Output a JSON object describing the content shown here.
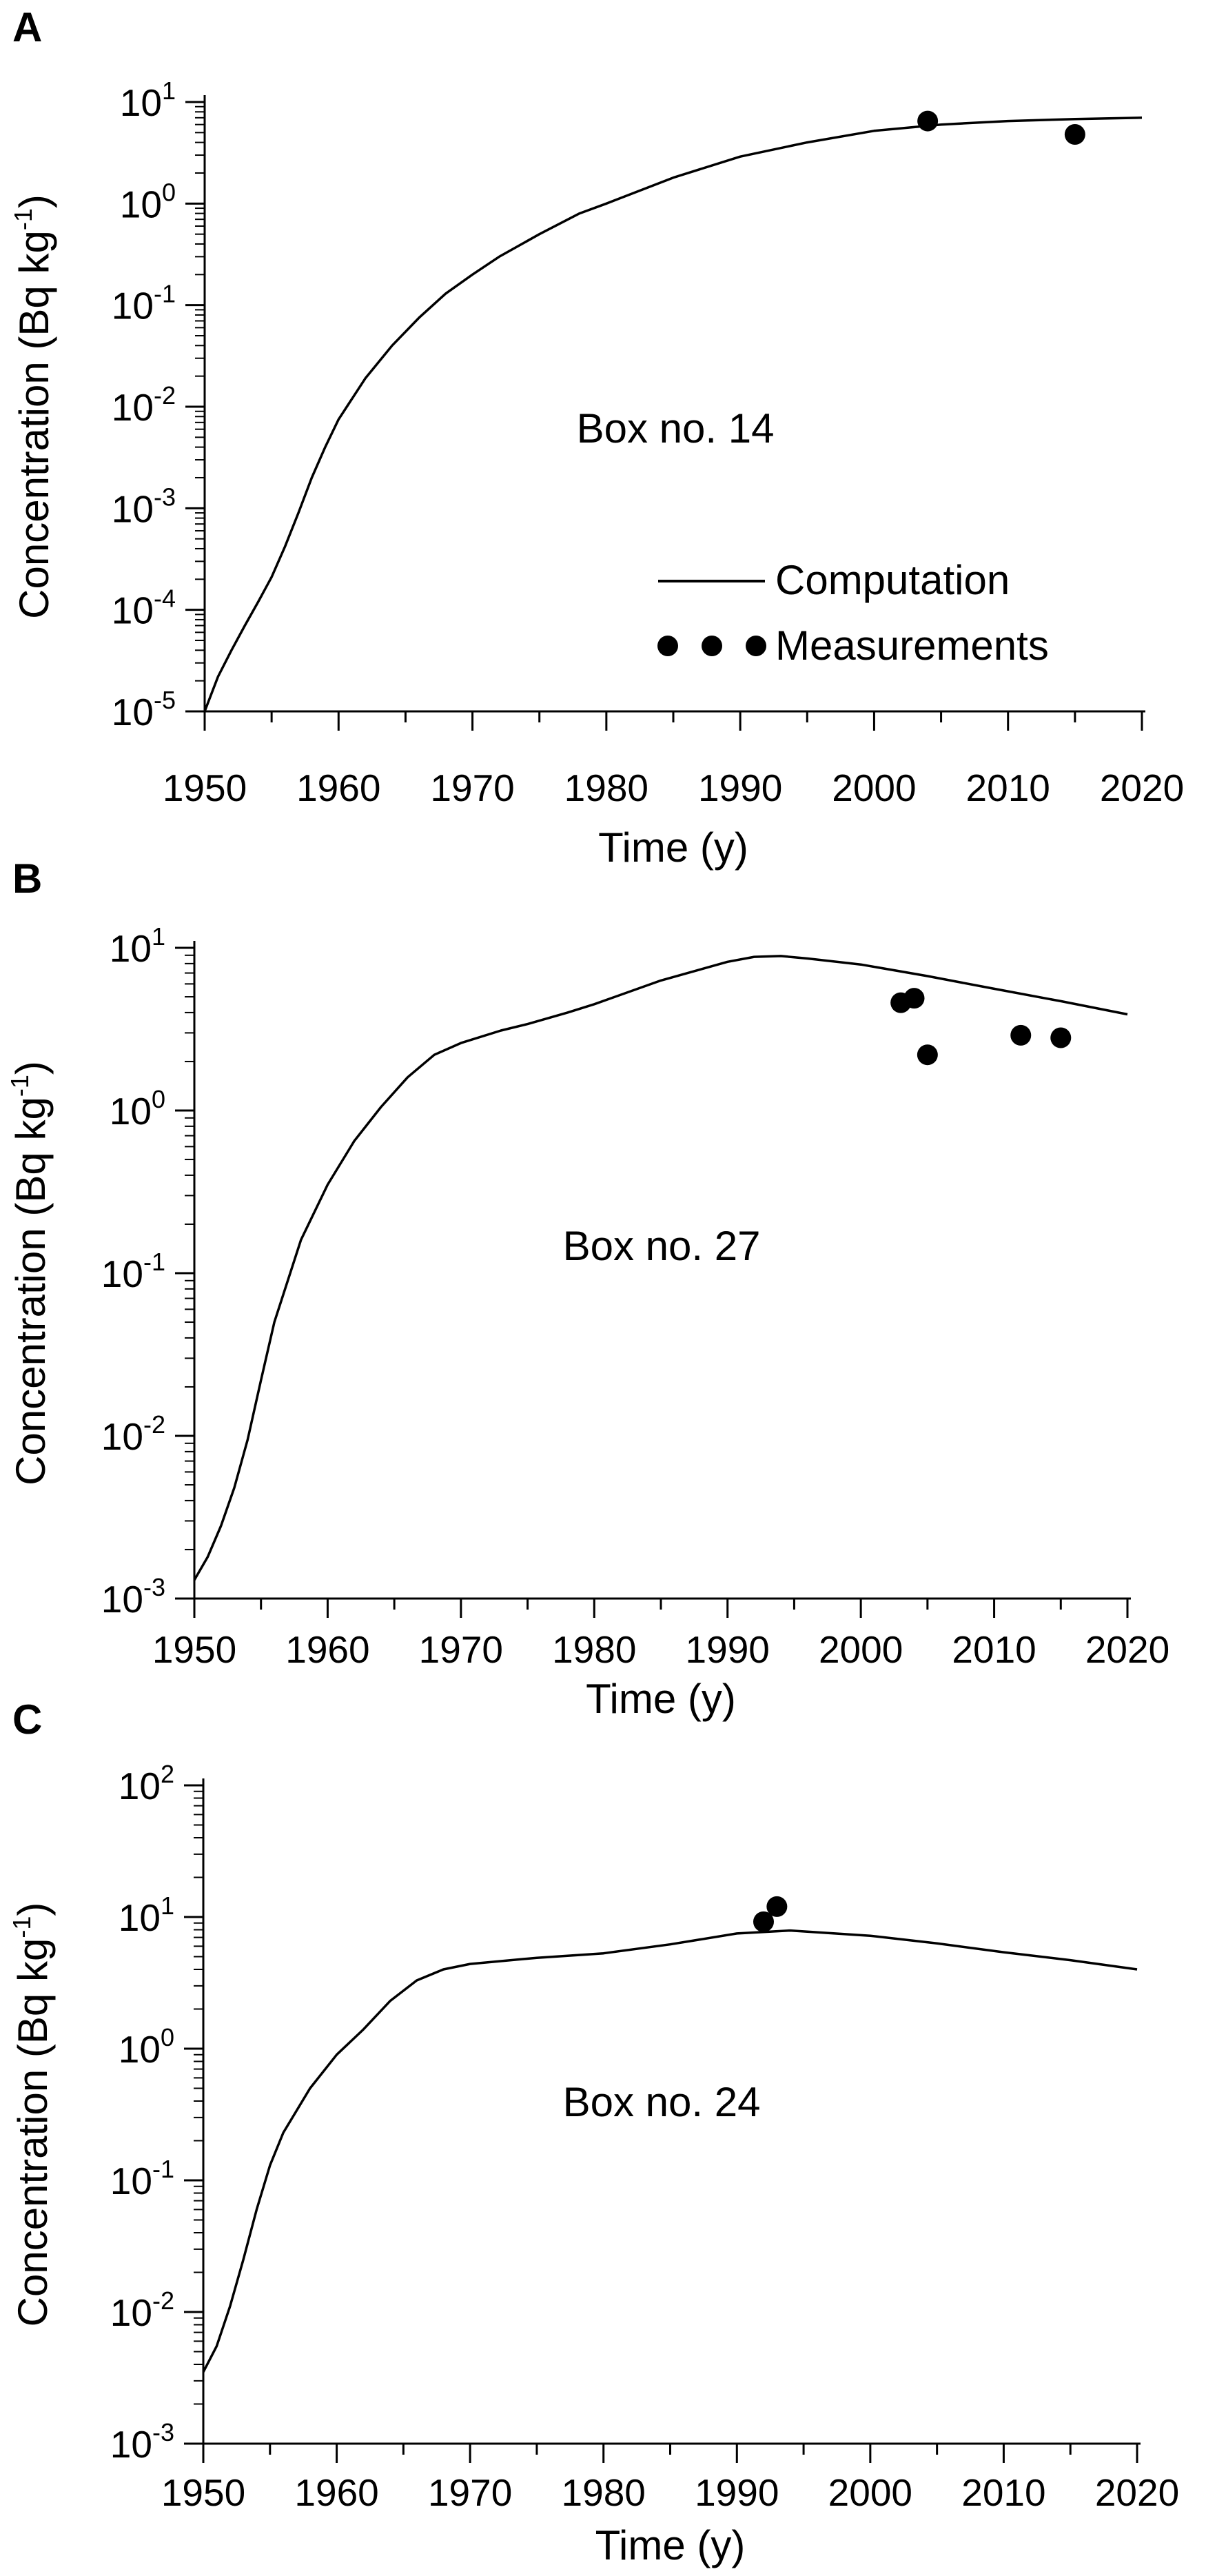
{
  "chart_data": [
    {
      "type": "line",
      "panel_label": "A",
      "xlabel": "Time  (y)",
      "ylabel": "Concentration  (Bq kg",
      "ylabel_exp": "-1",
      "ylabel_close": ")",
      "x_scale": "linear",
      "y_scale": "log",
      "xlim": [
        1950,
        2020
      ],
      "ylim": [
        1e-05,
        10
      ],
      "x_ticks": [
        1950,
        1960,
        1970,
        1980,
        1990,
        2000,
        2010,
        2020
      ],
      "x_tick_labels": [
        "1950",
        "1960",
        "1970",
        "1980",
        "1990",
        "2000",
        "2010",
        "2020"
      ],
      "y_ticks": [
        {
          "value": 1e-05,
          "base": "10",
          "exp": "-5"
        },
        {
          "value": 0.0001,
          "base": "10",
          "exp": "-4"
        },
        {
          "value": 0.001,
          "base": "10",
          "exp": "-3"
        },
        {
          "value": 0.01,
          "base": "10",
          "exp": "-2"
        },
        {
          "value": 0.1,
          "base": "10",
          "exp": "-1"
        },
        {
          "value": 1,
          "base": "10",
          "exp": "0"
        },
        {
          "value": 10,
          "base": "10",
          "exp": "1"
        }
      ],
      "annotation": "Box no. 14",
      "legend": {
        "placement": "lower-right",
        "line_label": "Computation",
        "points_label": "Measurements"
      },
      "series": [
        {
          "kind": "line",
          "x": [
            1950,
            1951,
            1952,
            1953,
            1954,
            1955,
            1956,
            1957,
            1958,
            1959,
            1960,
            1962,
            1964,
            1966,
            1968,
            1970,
            1972,
            1975,
            1978,
            1980,
            1985,
            1990,
            1995,
            2000,
            2005,
            2010,
            2015,
            2020
          ],
          "y": [
            1e-05,
            2.2e-05,
            4e-05,
            7e-05,
            0.00012,
            0.00021,
            0.00042,
            0.0009,
            0.002,
            0.004,
            0.0075,
            0.019,
            0.04,
            0.075,
            0.13,
            0.2,
            0.3,
            0.5,
            0.8,
            1.0,
            1.8,
            2.9,
            4.0,
            5.2,
            6.0,
            6.5,
            6.8,
            7.0
          ]
        },
        {
          "kind": "points",
          "x": [
            2004,
            2015
          ],
          "y": [
            6.5,
            4.8
          ]
        }
      ]
    },
    {
      "type": "line",
      "panel_label": "B",
      "xlabel": "Time  (y)",
      "ylabel": "Concentration  (Bq kg",
      "ylabel_exp": "-1",
      "ylabel_close": ")",
      "x_scale": "linear",
      "y_scale": "log",
      "xlim": [
        1950,
        2020
      ],
      "ylim": [
        0.001,
        10
      ],
      "x_ticks": [
        1950,
        1960,
        1970,
        1980,
        1990,
        2000,
        2010,
        2020
      ],
      "x_tick_labels": [
        "1950",
        "1960",
        "1970",
        "1980",
        "1990",
        "2000",
        "2010",
        "2020"
      ],
      "y_ticks": [
        {
          "value": 0.001,
          "base": "10",
          "exp": "-3"
        },
        {
          "value": 0.01,
          "base": "10",
          "exp": "-2"
        },
        {
          "value": 0.1,
          "base": "10",
          "exp": "-1"
        },
        {
          "value": 1,
          "base": "10",
          "exp": "0"
        },
        {
          "value": 10,
          "base": "10",
          "exp": "1"
        }
      ],
      "annotation": "Box no. 27",
      "series": [
        {
          "kind": "line",
          "x": [
            1950,
            1951,
            1952,
            1953,
            1954,
            1955,
            1956,
            1958,
            1960,
            1962,
            1964,
            1966,
            1968,
            1970,
            1973,
            1975,
            1978,
            1980,
            1985,
            1990,
            1992,
            1994,
            1996,
            2000,
            2005,
            2010,
            2015,
            2020
          ],
          "y": [
            0.0013,
            0.0018,
            0.0028,
            0.0048,
            0.0095,
            0.022,
            0.05,
            0.16,
            0.35,
            0.65,
            1.05,
            1.6,
            2.2,
            2.6,
            3.1,
            3.4,
            4.0,
            4.5,
            6.3,
            8.2,
            8.8,
            8.9,
            8.6,
            7.9,
            6.7,
            5.6,
            4.7,
            3.9
          ]
        },
        {
          "kind": "points",
          "x": [
            2003,
            2004,
            2005,
            2012,
            2015
          ],
          "y": [
            4.6,
            4.9,
            2.2,
            2.9,
            2.8
          ]
        }
      ]
    },
    {
      "type": "line",
      "panel_label": "C",
      "xlabel": "Time  (y)",
      "ylabel": "Concentration  (Bq kg",
      "ylabel_exp": "-1",
      "ylabel_close": ")",
      "x_scale": "linear",
      "y_scale": "log",
      "xlim": [
        1950,
        2020
      ],
      "ylim": [
        0.001,
        100
      ],
      "x_ticks": [
        1950,
        1960,
        1970,
        1980,
        1990,
        2000,
        2010,
        2020
      ],
      "x_tick_labels": [
        "1950",
        "1960",
        "1970",
        "1980",
        "1990",
        "2000",
        "2010",
        "2020"
      ],
      "y_ticks": [
        {
          "value": 0.001,
          "base": "10",
          "exp": "-3"
        },
        {
          "value": 0.01,
          "base": "10",
          "exp": "-2"
        },
        {
          "value": 0.1,
          "base": "10",
          "exp": "-1"
        },
        {
          "value": 1,
          "base": "10",
          "exp": "0"
        },
        {
          "value": 10,
          "base": "10",
          "exp": "1"
        },
        {
          "value": 100,
          "base": "10",
          "exp": "2"
        }
      ],
      "annotation": "Box no. 24",
      "series": [
        {
          "kind": "line",
          "x": [
            1950,
            1951,
            1952,
            1953,
            1954,
            1955,
            1956,
            1958,
            1960,
            1962,
            1964,
            1966,
            1968,
            1970,
            1975,
            1980,
            1985,
            1990,
            1994,
            2000,
            2005,
            2010,
            2015,
            2020
          ],
          "y": [
            0.0035,
            0.0055,
            0.011,
            0.025,
            0.06,
            0.13,
            0.23,
            0.5,
            0.9,
            1.4,
            2.3,
            3.3,
            4.0,
            4.4,
            4.9,
            5.3,
            6.2,
            7.5,
            7.9,
            7.2,
            6.3,
            5.4,
            4.7,
            4.0
          ]
        },
        {
          "kind": "points",
          "x": [
            1992,
            1993
          ],
          "y": [
            9.2,
            12.0
          ]
        }
      ]
    }
  ]
}
